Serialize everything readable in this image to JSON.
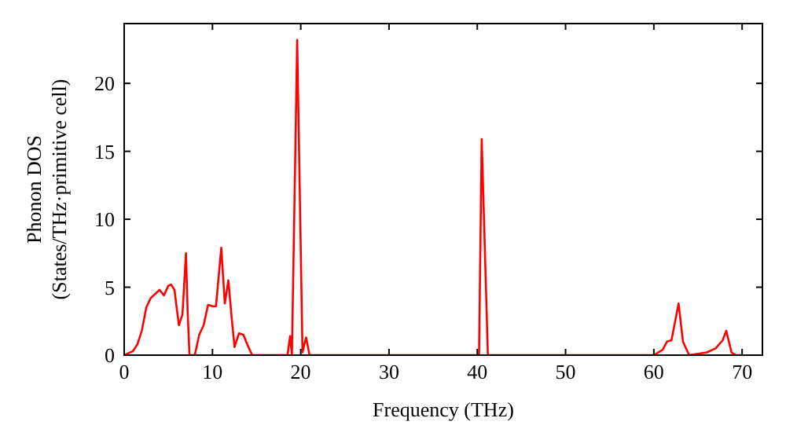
{
  "chart_data": {
    "type": "line",
    "xlabel": "Frequency (THz)",
    "ylabel": "Phonon DOS\n(States/THz·primitive cell)",
    "xlim": [
      0,
      72.3
    ],
    "ylim": [
      0,
      24.4
    ],
    "xticks": [
      0,
      10,
      20,
      30,
      40,
      50,
      60,
      70
    ],
    "yticks": [
      0,
      5,
      10,
      15,
      20
    ],
    "grid": false,
    "marker": "none",
    "line_style": "solid",
    "series": [
      {
        "color": "#ff0000",
        "x": [
          0,
          1,
          1.5,
          2,
          2.5,
          3,
          3.5,
          4,
          4.5,
          5,
          5.3,
          5.7,
          6,
          6.2,
          6.6,
          7,
          7.2,
          7.4,
          8,
          8.5,
          9,
          9.5,
          10,
          10.4,
          11,
          11.4,
          11.8,
          12.2,
          12.5,
          13,
          13.5,
          14,
          14.5,
          18.5,
          18.8,
          19,
          19.6,
          20.2,
          20.6,
          21,
          22,
          40,
          40.2,
          40.5,
          41.2,
          60,
          61,
          61.5,
          62,
          62.8,
          63.3,
          64,
          66,
          67,
          67.8,
          68.2,
          68.8,
          69.3,
          70
        ],
        "values": [
          0,
          0.3,
          0.8,
          1.8,
          3.5,
          4.2,
          4.5,
          4.8,
          4.4,
          5.1,
          5.2,
          4.8,
          3.2,
          2.2,
          3.0,
          7.5,
          3,
          0,
          0,
          1.5,
          2.2,
          3.7,
          3.6,
          3.6,
          7.9,
          3.8,
          5.5,
          2.6,
          0.6,
          1.6,
          1.5,
          0.7,
          0,
          0,
          1.4,
          0,
          23.2,
          0.2,
          1.3,
          0,
          0,
          0,
          0,
          15.9,
          0,
          0,
          0.4,
          1.0,
          1.1,
          3.8,
          1.0,
          0,
          0.2,
          0.5,
          1.1,
          1.8,
          0.2,
          0,
          0
        ]
      }
    ]
  }
}
